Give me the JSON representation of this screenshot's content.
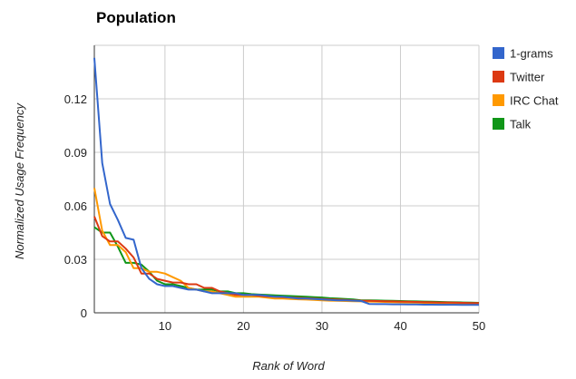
{
  "chart_data": {
    "type": "line",
    "title": "Population",
    "xlabel": "Rank of Word",
    "ylabel": "Normalized Usage Frequency",
    "xlim": [
      1,
      50
    ],
    "ylim": [
      0,
      0.15
    ],
    "x_ticks": [
      10,
      20,
      30,
      40,
      50
    ],
    "y_ticks": [
      0,
      0.03,
      0.06,
      0.09,
      0.12
    ],
    "x_tick_labels": [
      "10",
      "20",
      "30",
      "40",
      "50"
    ],
    "y_tick_labels": [
      "0",
      "0.03",
      "0.06",
      "0.09",
      "0.12"
    ],
    "grid": true,
    "legend_position": "right",
    "x": [
      1,
      2,
      3,
      4,
      5,
      6,
      7,
      8,
      9,
      10,
      11,
      12,
      13,
      14,
      15,
      16,
      17,
      18,
      19,
      20,
      21,
      22,
      23,
      24,
      25,
      26,
      27,
      28,
      29,
      30,
      31,
      32,
      33,
      34,
      35,
      36,
      37,
      38,
      39,
      40,
      41,
      42,
      43,
      44,
      45,
      46,
      47,
      48,
      49,
      50
    ],
    "series": [
      {
        "name": "1-grams",
        "color": "#3366cc",
        "values": [
          0.143,
          0.084,
          0.061,
          0.052,
          0.042,
          0.041,
          0.025,
          0.019,
          0.016,
          0.015,
          0.015,
          0.014,
          0.013,
          0.013,
          0.012,
          0.011,
          0.011,
          0.011,
          0.011,
          0.01,
          0.01,
          0.01,
          0.0095,
          0.009,
          0.009,
          0.0085,
          0.008,
          0.008,
          0.0078,
          0.0075,
          0.0072,
          0.007,
          0.007,
          0.0068,
          0.0066,
          0.005,
          0.0049,
          0.0049,
          0.0048,
          0.0048,
          0.0047,
          0.0047,
          0.0046,
          0.0046,
          0.0045,
          0.0045,
          0.0045,
          0.0044,
          0.0044,
          0.0044
        ]
      },
      {
        "name": "Twitter",
        "color": "#dc3912",
        "values": [
          0.054,
          0.043,
          0.04,
          0.04,
          0.036,
          0.031,
          0.022,
          0.022,
          0.019,
          0.018,
          0.017,
          0.017,
          0.016,
          0.016,
          0.014,
          0.014,
          0.012,
          0.011,
          0.01,
          0.01,
          0.01,
          0.0095,
          0.0092,
          0.009,
          0.0088,
          0.0086,
          0.0084,
          0.0082,
          0.008,
          0.0078,
          0.0076,
          0.0074,
          0.0072,
          0.007,
          0.0068,
          0.0067,
          0.0066,
          0.0065,
          0.0064,
          0.0063,
          0.0062,
          0.0061,
          0.006,
          0.0059,
          0.0058,
          0.0058,
          0.0057,
          0.0056,
          0.0055,
          0.0055
        ]
      },
      {
        "name": "IRC Chat",
        "color": "#ff9900",
        "values": [
          0.07,
          0.046,
          0.038,
          0.038,
          0.034,
          0.025,
          0.025,
          0.023,
          0.023,
          0.022,
          0.02,
          0.018,
          0.014,
          0.013,
          0.012,
          0.012,
          0.011,
          0.01,
          0.009,
          0.009,
          0.009,
          0.009,
          0.0085,
          0.008,
          0.008,
          0.0078,
          0.0076,
          0.0074,
          0.0072,
          0.007,
          0.0068,
          0.0067,
          0.0066,
          0.0065,
          0.0064,
          0.0063,
          0.0062,
          0.0061,
          0.006,
          0.0059,
          0.0058,
          0.0057,
          0.0056,
          0.0055,
          0.0054,
          0.0053,
          0.0052,
          0.0051,
          0.005,
          0.005
        ]
      },
      {
        "name": "Talk",
        "color": "#109618",
        "values": [
          0.048,
          0.045,
          0.045,
          0.037,
          0.028,
          0.028,
          0.027,
          0.023,
          0.018,
          0.016,
          0.016,
          0.015,
          0.014,
          0.013,
          0.013,
          0.013,
          0.012,
          0.012,
          0.011,
          0.011,
          0.0105,
          0.0102,
          0.01,
          0.0098,
          0.0096,
          0.0094,
          0.0092,
          0.009,
          0.0088,
          0.0086,
          0.0082,
          0.008,
          0.0078,
          0.0075,
          0.007,
          0.007,
          0.0069,
          0.0068,
          0.0067,
          0.0066,
          0.0065,
          0.0064,
          0.0063,
          0.0062,
          0.0061,
          0.006,
          0.0059,
          0.0058,
          0.0057,
          0.0056
        ]
      }
    ]
  }
}
